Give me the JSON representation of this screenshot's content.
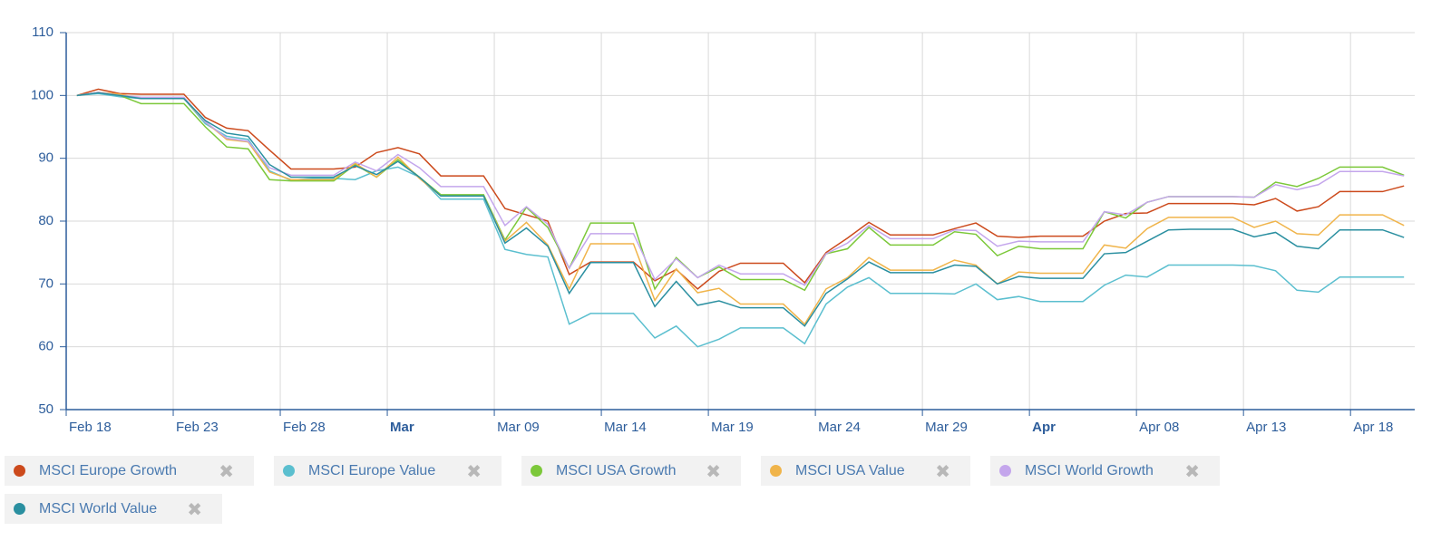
{
  "chart_data": {
    "type": "line",
    "x": [
      0,
      1,
      2,
      3,
      4,
      5,
      6,
      7,
      8,
      9,
      10,
      11,
      12,
      13,
      14,
      15,
      16,
      17,
      18,
      19,
      20,
      21,
      22,
      23,
      24,
      25,
      26,
      27,
      28,
      29,
      30,
      31,
      32,
      33,
      34,
      35,
      36,
      37,
      38,
      39,
      40,
      41,
      42,
      43,
      44,
      45,
      46,
      47,
      48,
      49,
      50,
      51,
      52,
      53,
      54,
      55,
      56,
      57,
      58,
      59,
      60,
      61,
      62
    ],
    "xlim": [
      -0.5,
      62.5
    ],
    "xticks": [
      {
        "value": -0.5,
        "label": "Feb 18"
      },
      {
        "value": 4.5,
        "label": "Feb 23"
      },
      {
        "value": 9.5,
        "label": "Feb 28"
      },
      {
        "value": 14.5,
        "label": "Mar",
        "bold": true
      },
      {
        "value": 19.5,
        "label": "Mar 09"
      },
      {
        "value": 24.5,
        "label": "Mar 14"
      },
      {
        "value": 29.5,
        "label": "Mar 19"
      },
      {
        "value": 34.5,
        "label": "Mar 24"
      },
      {
        "value": 39.5,
        "label": "Mar 29"
      },
      {
        "value": 44.5,
        "label": "Apr",
        "bold": true
      },
      {
        "value": 49.5,
        "label": "Apr 08"
      },
      {
        "value": 54.5,
        "label": "Apr 13"
      },
      {
        "value": 59.5,
        "label": "Apr 18"
      }
    ],
    "ylim": [
      50,
      110
    ],
    "yticks": [
      50,
      60,
      70,
      80,
      90,
      100,
      110
    ],
    "grid": true,
    "series": [
      {
        "name": "MSCI Europe Growth",
        "color": "#cc4a1c",
        "values": [
          100,
          101,
          100.3,
          100.2,
          100.2,
          100.2,
          96.5,
          94.8,
          94.4,
          91.3,
          88.3,
          88.3,
          88.3,
          88.6,
          90.9,
          91.7,
          90.7,
          87.2,
          87.2,
          87.2,
          82,
          81,
          80,
          71.5,
          73.5,
          73.5,
          73.5,
          70.5,
          72.3,
          69.2,
          72,
          73.3,
          73.3,
          73.3,
          70.2,
          75,
          77.3,
          79.8,
          77.8,
          77.8,
          77.8,
          78.8,
          79.7,
          77.6,
          77.4,
          77.6,
          77.6,
          77.6,
          80,
          81.2,
          81.3,
          82.8,
          82.8,
          82.8,
          82.8,
          82.6,
          83.6,
          81.6,
          82.3,
          84.7,
          84.7,
          84.7,
          85.6
        ]
      },
      {
        "name": "MSCI Europe Value",
        "color": "#5bbfcf",
        "values": [
          100,
          100.3,
          99.8,
          99.5,
          99.5,
          99.5,
          95.5,
          93.5,
          93,
          88,
          86.5,
          86.8,
          86.8,
          86.6,
          88,
          88.6,
          87,
          83.5,
          83.5,
          83.5,
          75.5,
          74.7,
          74.3,
          63.6,
          65.3,
          65.3,
          65.3,
          61.4,
          63.3,
          60,
          61.2,
          63,
          63,
          63,
          60.5,
          66.8,
          69.5,
          71,
          68.5,
          68.5,
          68.5,
          68.4,
          70,
          67.5,
          68,
          67.2,
          67.2,
          67.2,
          69.8,
          71.4,
          71.1,
          73,
          73,
          73,
          73,
          72.9,
          72.1,
          69,
          68.7,
          71.1,
          71.1,
          71.1,
          71.1
        ]
      },
      {
        "name": "MSCI USA Growth",
        "color": "#7cc83a",
        "values": [
          100,
          100.5,
          100,
          98.7,
          98.7,
          98.7,
          95,
          91.8,
          91.5,
          86.6,
          86.4,
          86.4,
          86.4,
          89,
          87,
          89.8,
          87,
          84.2,
          84.2,
          84.2,
          77,
          82.2,
          79,
          72.5,
          79.7,
          79.7,
          79.7,
          69.2,
          74.2,
          71,
          72.7,
          70.7,
          70.7,
          70.7,
          69,
          74.8,
          75.6,
          79,
          76.2,
          76.2,
          76.2,
          78.3,
          77.9,
          74.5,
          76,
          75.6,
          75.6,
          75.6,
          81.5,
          80.5,
          83,
          83.9,
          83.9,
          83.9,
          83.9,
          83.8,
          86.2,
          85.5,
          86.8,
          88.6,
          88.6,
          88.6,
          87.3
        ]
      },
      {
        "name": "MSCI USA Value",
        "color": "#f0b44a",
        "values": [
          100,
          100.5,
          100.2,
          99.5,
          99.5,
          99.5,
          95.8,
          93,
          92.6,
          87.8,
          86.6,
          86.6,
          86.6,
          89.2,
          87,
          90.2,
          86.8,
          84,
          84,
          84,
          76.8,
          79.8,
          76.2,
          69.2,
          76.4,
          76.4,
          76.4,
          67.4,
          72.4,
          68.6,
          69.3,
          66.8,
          66.8,
          66.8,
          63.6,
          69.2,
          71,
          74.2,
          72.2,
          72.2,
          72.2,
          73.8,
          73,
          70,
          71.9,
          71.7,
          71.7,
          71.7,
          76.2,
          75.7,
          78.8,
          80.6,
          80.6,
          80.6,
          80.6,
          79,
          80,
          78,
          77.8,
          81,
          81,
          81,
          79.3
        ]
      },
      {
        "name": "MSCI World Growth",
        "color": "#c4a6ec",
        "values": [
          100,
          100.5,
          100,
          99.7,
          99.7,
          99.7,
          95.8,
          93.2,
          92.7,
          88.5,
          87.3,
          87.3,
          87.3,
          89.4,
          88,
          90.6,
          88.5,
          85.5,
          85.5,
          85.5,
          79.3,
          82.3,
          79.5,
          72.5,
          78,
          78,
          78,
          70.7,
          74,
          71,
          73,
          71.6,
          71.6,
          71.6,
          69.8,
          74.8,
          76.5,
          79.3,
          77.2,
          77.2,
          77.2,
          78.6,
          78.5,
          76,
          76.8,
          76.7,
          76.7,
          76.7,
          81.5,
          81,
          83,
          83.9,
          83.9,
          83.9,
          83.9,
          83.8,
          85.8,
          85,
          85.8,
          87.9,
          87.9,
          87.9,
          87.2
        ]
      },
      {
        "name": "MSCI World Value",
        "color": "#2a8fa0",
        "values": [
          100,
          100.4,
          100,
          99.5,
          99.5,
          99.5,
          96,
          94,
          93.5,
          89,
          87,
          87,
          87,
          88.8,
          87.4,
          89.5,
          87,
          84,
          84,
          84,
          76.5,
          78.9,
          76,
          68.5,
          73.4,
          73.4,
          73.4,
          66.4,
          70.4,
          66.6,
          67.3,
          66.2,
          66.2,
          66.2,
          63.3,
          68.5,
          70.8,
          73.5,
          71.8,
          71.8,
          71.8,
          73,
          72.8,
          70,
          71.2,
          70.9,
          70.9,
          70.9,
          74.8,
          75,
          76.8,
          78.6,
          78.7,
          78.7,
          78.7,
          77.5,
          78.2,
          76,
          75.6,
          78.6,
          78.6,
          78.6,
          77.4
        ]
      }
    ]
  }
}
